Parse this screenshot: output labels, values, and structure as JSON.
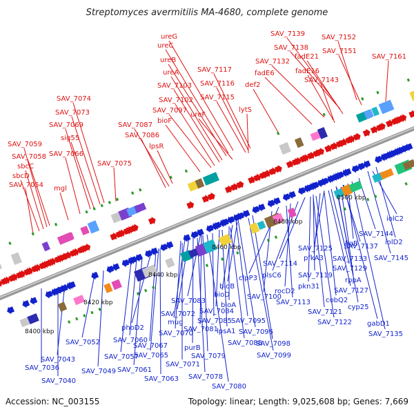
{
  "title": "Streptomyces avermitilis MA-4680, complete genome",
  "footer": {
    "accession": "Accession: NC_003155",
    "stats": "Topology: linear; Length: 9,025,608 bp; Genes: 7,669"
  },
  "colors": {
    "forward": "#dd1111",
    "reverse": "#1122cc",
    "axis": "#888888"
  },
  "ticks": [
    "8400 kbp",
    "8420 kbp",
    "8440 kbp",
    "8460 kbp",
    "8480 kbp",
    "8500 kbp"
  ],
  "labels_top": [
    "SAV_7139",
    "SAV_7152",
    "ureG",
    "SAV_7138",
    "ureC",
    "fadE21",
    "SAV_7151",
    "SAV_7161",
    "ureB",
    "SAV_7132",
    "fadE16",
    "SAV_7117",
    "ureA",
    "fadE6",
    "SAV_7143",
    "SAV_7103",
    "SAV_7116",
    "def2",
    "SAV_7074",
    "SAV_7102",
    "SAV_7115",
    "SAV_7097",
    "ureF",
    "lytS",
    "SAV_7073",
    "bioF",
    "SAV_7087",
    "SAV_7069",
    "SAV_7086",
    "sig55",
    "lpsR",
    "SAV_7059",
    "SAV_7066",
    "SAV_7058",
    "SAV_7075",
    "sbcC",
    "sbcD",
    "SAV_7054",
    "mgl"
  ],
  "labels_bottom": [
    "iolC2",
    "SAV_7144",
    "ligB",
    "iolD2",
    "SAV_7137",
    "SAV_7125",
    "pfkA3",
    "SAV_7145",
    "SAV_7114",
    "SAV_7133",
    "plsC6",
    "SAV_7119",
    "SAV_7129",
    "clpP3",
    "rppA",
    "pkn31",
    "rocD2",
    "bioB",
    "SAV_7127",
    "bioD",
    "SAV_7100",
    "SAV_7113",
    "cobQ2",
    "SAV_7083",
    "bioA",
    "cyp25",
    "SAV_7121",
    "SAV_7072",
    "SAV_7084",
    "mug",
    "gabD1",
    "SAV_7122",
    "phoD2",
    "SAV_7095",
    "SAV_7085",
    "SAV_7081",
    "SAV_7135",
    "SAV_7070",
    "SAV_7096",
    "lpsA1",
    "SAV_7052",
    "SAV_7060",
    "SAV_7088",
    "SAV_7098",
    "SAV_7067",
    "purB",
    "SAV_7057",
    "SAV_7065",
    "SAV_7079",
    "SAV_7099",
    "SAV_7043",
    "SAV_7071",
    "SAV_7036",
    "SAV_7061",
    "SAV_7049",
    "SAV_7078",
    "SAV_7063",
    "SAV_7040",
    "SAV_7080"
  ]
}
